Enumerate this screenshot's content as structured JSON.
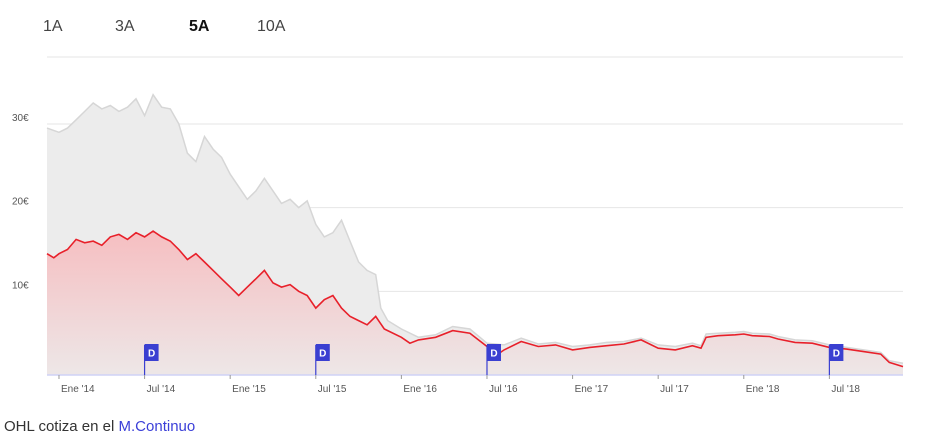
{
  "tabs": [
    {
      "label": "1A",
      "active": false
    },
    {
      "label": "3A",
      "active": false
    },
    {
      "label": "5A",
      "active": true
    },
    {
      "label": "10A",
      "active": false
    }
  ],
  "footer": {
    "prefix": "OHL cotiza en el",
    "link": "M.Continuo"
  },
  "colors": {
    "price_line": "#e8202a",
    "price_fill": "#f7b9bc",
    "benchmark_line": "#d6d6d6",
    "benchmark_fill": "#ececec",
    "dividend_flag": "#3a3fd1",
    "grid": "#e6e6e6"
  },
  "chart_data": {
    "type": "line",
    "ylim": [
      0,
      38
    ],
    "yticks": [
      {
        "value": 10,
        "label": "10€"
      },
      {
        "value": 20,
        "label": "20€"
      },
      {
        "value": 30,
        "label": "30€"
      }
    ],
    "xlim": [
      2013.93,
      2018.93
    ],
    "xticks": [
      {
        "x": 2014.0,
        "label": "Ene '14"
      },
      {
        "x": 2014.5,
        "label": "Jul '14"
      },
      {
        "x": 2015.0,
        "label": "Ene '15"
      },
      {
        "x": 2015.5,
        "label": "Jul '15"
      },
      {
        "x": 2016.0,
        "label": "Ene '16"
      },
      {
        "x": 2016.5,
        "label": "Jul '16"
      },
      {
        "x": 2017.0,
        "label": "Ene '17"
      },
      {
        "x": 2017.5,
        "label": "Jul '17"
      },
      {
        "x": 2018.0,
        "label": "Ene '18"
      },
      {
        "x": 2018.5,
        "label": "Jul '18"
      }
    ],
    "series": [
      {
        "role": "benchmark",
        "points": [
          [
            2013.93,
            29.5
          ],
          [
            2014.0,
            29.0
          ],
          [
            2014.05,
            29.5
          ],
          [
            2014.1,
            30.5
          ],
          [
            2014.15,
            31.5
          ],
          [
            2014.2,
            32.5
          ],
          [
            2014.25,
            31.8
          ],
          [
            2014.3,
            32.2
          ],
          [
            2014.35,
            31.5
          ],
          [
            2014.4,
            32.0
          ],
          [
            2014.45,
            33.0
          ],
          [
            2014.5,
            31.0
          ],
          [
            2014.55,
            33.5
          ],
          [
            2014.6,
            32.0
          ],
          [
            2014.65,
            31.8
          ],
          [
            2014.7,
            30.0
          ],
          [
            2014.75,
            26.5
          ],
          [
            2014.8,
            25.5
          ],
          [
            2014.85,
            28.5
          ],
          [
            2014.9,
            27.0
          ],
          [
            2014.95,
            26.0
          ],
          [
            2015.0,
            24.0
          ],
          [
            2015.05,
            22.5
          ],
          [
            2015.1,
            21.0
          ],
          [
            2015.15,
            22.0
          ],
          [
            2015.2,
            23.5
          ],
          [
            2015.25,
            22.0
          ],
          [
            2015.3,
            20.5
          ],
          [
            2015.35,
            21.0
          ],
          [
            2015.4,
            20.0
          ],
          [
            2015.45,
            20.8
          ],
          [
            2015.5,
            18.0
          ],
          [
            2015.55,
            16.5
          ],
          [
            2015.6,
            17.0
          ],
          [
            2015.65,
            18.5
          ],
          [
            2015.7,
            16.0
          ],
          [
            2015.75,
            13.5
          ],
          [
            2015.8,
            12.5
          ],
          [
            2015.85,
            12.0
          ],
          [
            2015.88,
            8.0
          ],
          [
            2015.92,
            6.5
          ],
          [
            2016.0,
            5.5
          ],
          [
            2016.1,
            4.5
          ],
          [
            2016.2,
            4.8
          ],
          [
            2016.3,
            5.8
          ],
          [
            2016.4,
            5.5
          ],
          [
            2016.5,
            3.8
          ],
          [
            2016.6,
            3.6
          ],
          [
            2016.7,
            4.4
          ],
          [
            2016.8,
            3.7
          ],
          [
            2016.9,
            3.9
          ],
          [
            2017.0,
            3.4
          ],
          [
            2017.1,
            3.6
          ],
          [
            2017.2,
            3.9
          ],
          [
            2017.3,
            4.0
          ],
          [
            2017.4,
            4.4
          ],
          [
            2017.5,
            3.6
          ],
          [
            2017.6,
            3.4
          ],
          [
            2017.7,
            3.8
          ],
          [
            2017.75,
            3.5
          ],
          [
            2017.78,
            4.9
          ],
          [
            2017.85,
            5.0
          ],
          [
            2017.95,
            5.1
          ],
          [
            2018.0,
            5.2
          ],
          [
            2018.05,
            5.0
          ],
          [
            2018.15,
            4.9
          ],
          [
            2018.2,
            4.6
          ],
          [
            2018.3,
            4.2
          ],
          [
            2018.4,
            4.1
          ],
          [
            2018.5,
            3.6
          ],
          [
            2018.6,
            3.3
          ],
          [
            2018.7,
            3.0
          ],
          [
            2018.8,
            2.7
          ],
          [
            2018.85,
            1.7
          ],
          [
            2018.93,
            1.4
          ]
        ]
      },
      {
        "role": "price",
        "points": [
          [
            2013.93,
            14.5
          ],
          [
            2013.97,
            14.0
          ],
          [
            2014.0,
            14.5
          ],
          [
            2014.05,
            15.0
          ],
          [
            2014.1,
            16.2
          ],
          [
            2014.15,
            15.8
          ],
          [
            2014.2,
            16.0
          ],
          [
            2014.25,
            15.5
          ],
          [
            2014.3,
            16.5
          ],
          [
            2014.35,
            16.8
          ],
          [
            2014.4,
            16.2
          ],
          [
            2014.45,
            17.0
          ],
          [
            2014.5,
            16.5
          ],
          [
            2014.55,
            17.2
          ],
          [
            2014.6,
            16.5
          ],
          [
            2014.65,
            16.0
          ],
          [
            2014.7,
            15.0
          ],
          [
            2014.75,
            13.8
          ],
          [
            2014.8,
            14.5
          ],
          [
            2014.85,
            13.5
          ],
          [
            2014.9,
            12.5
          ],
          [
            2014.95,
            11.5
          ],
          [
            2015.0,
            10.5
          ],
          [
            2015.05,
            9.5
          ],
          [
            2015.1,
            10.5
          ],
          [
            2015.15,
            11.5
          ],
          [
            2015.2,
            12.5
          ],
          [
            2015.25,
            11.0
          ],
          [
            2015.3,
            10.5
          ],
          [
            2015.35,
            10.8
          ],
          [
            2015.4,
            10.0
          ],
          [
            2015.45,
            9.5
          ],
          [
            2015.5,
            8.0
          ],
          [
            2015.55,
            9.0
          ],
          [
            2015.6,
            9.5
          ],
          [
            2015.65,
            8.0
          ],
          [
            2015.7,
            7.0
          ],
          [
            2015.75,
            6.5
          ],
          [
            2015.8,
            6.0
          ],
          [
            2015.85,
            7.0
          ],
          [
            2015.9,
            5.5
          ],
          [
            2016.0,
            4.5
          ],
          [
            2016.05,
            3.8
          ],
          [
            2016.1,
            4.2
          ],
          [
            2016.2,
            4.5
          ],
          [
            2016.3,
            5.3
          ],
          [
            2016.4,
            5.0
          ],
          [
            2016.5,
            3.4
          ],
          [
            2016.55,
            2.3
          ],
          [
            2016.6,
            3.0
          ],
          [
            2016.7,
            4.0
          ],
          [
            2016.8,
            3.4
          ],
          [
            2016.9,
            3.6
          ],
          [
            2017.0,
            3.0
          ],
          [
            2017.1,
            3.3
          ],
          [
            2017.2,
            3.5
          ],
          [
            2017.3,
            3.7
          ],
          [
            2017.4,
            4.2
          ],
          [
            2017.5,
            3.2
          ],
          [
            2017.6,
            3.0
          ],
          [
            2017.7,
            3.5
          ],
          [
            2017.75,
            3.2
          ],
          [
            2017.78,
            4.5
          ],
          [
            2017.85,
            4.7
          ],
          [
            2017.95,
            4.8
          ],
          [
            2018.0,
            4.9
          ],
          [
            2018.05,
            4.7
          ],
          [
            2018.15,
            4.6
          ],
          [
            2018.2,
            4.3
          ],
          [
            2018.3,
            3.9
          ],
          [
            2018.4,
            3.8
          ],
          [
            2018.5,
            3.3
          ],
          [
            2018.6,
            3.1
          ],
          [
            2018.7,
            2.8
          ],
          [
            2018.8,
            2.5
          ],
          [
            2018.85,
            1.5
          ],
          [
            2018.93,
            1.0
          ]
        ]
      }
    ],
    "dividend_markers": [
      {
        "x": 2014.5,
        "label": "D"
      },
      {
        "x": 2015.5,
        "label": "D"
      },
      {
        "x": 2016.5,
        "label": "D"
      },
      {
        "x": 2018.5,
        "label": "D"
      }
    ]
  }
}
